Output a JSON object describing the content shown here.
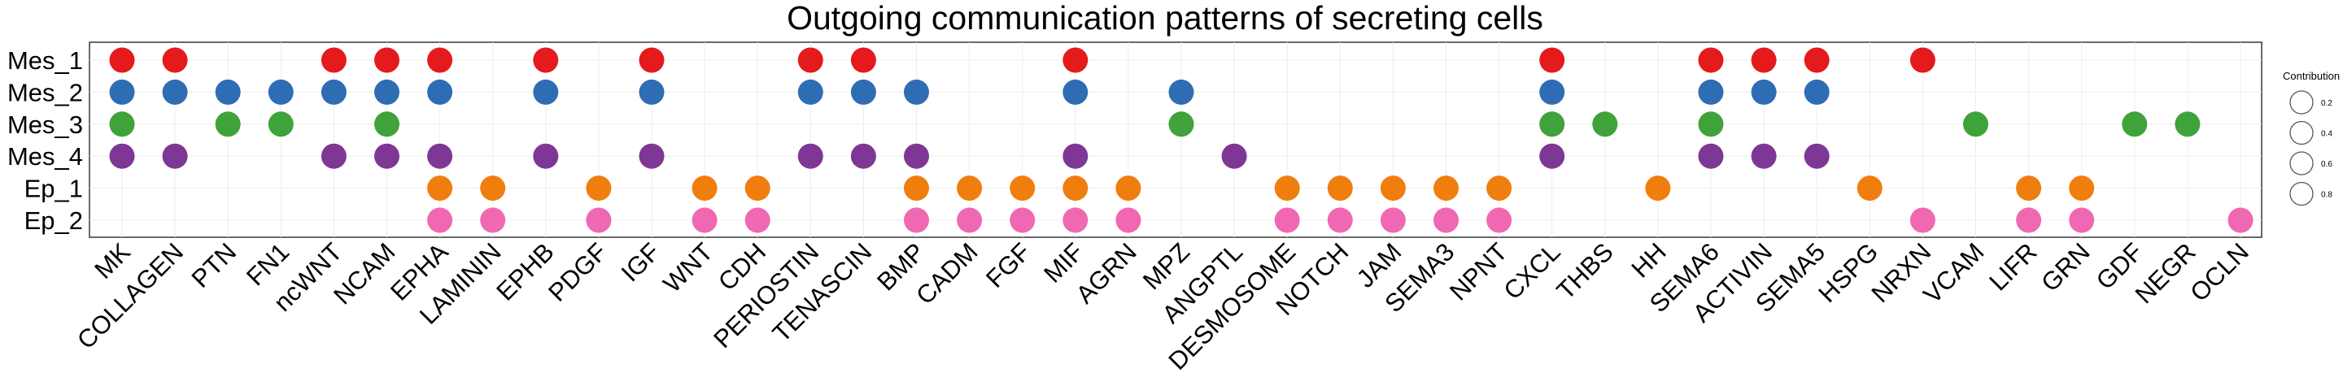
{
  "chart_data": {
    "type": "dot",
    "title": "Outgoing communication patterns of secreting cells",
    "xlabel": "",
    "ylabel": "",
    "grid": true,
    "legend_placement": "right",
    "pathways": [
      "MK",
      "COLLAGEN",
      "PTN",
      "FN1",
      "ncWNT",
      "NCAM",
      "EPHA",
      "LAMININ",
      "EPHB",
      "PDGF",
      "IGF",
      "WNT",
      "CDH",
      "PERIOSTIN",
      "TENASCIN",
      "BMP",
      "CADM",
      "FGF",
      "MIF",
      "AGRN",
      "MPZ",
      "ANGPTL",
      "DESMOSOME",
      "NOTCH",
      "JAM",
      "SEMA3",
      "NPNT",
      "CXCL",
      "THBS",
      "HH",
      "SEMA6",
      "ACTIVIN",
      "SEMA5",
      "HSPG",
      "NRXN",
      "VCAM",
      "LIFR",
      "GRN",
      "GDF",
      "NEGR",
      "OCLN"
    ],
    "cell_groups": [
      {
        "name": "Mes_1",
        "color": "#E41A1C",
        "pathways": [
          "MK",
          "COLLAGEN",
          "ncWNT",
          "NCAM",
          "EPHA",
          "EPHB",
          "IGF",
          "PERIOSTIN",
          "TENASCIN",
          "MIF",
          "CXCL",
          "SEMA6",
          "ACTIVIN",
          "SEMA5",
          "NRXN"
        ]
      },
      {
        "name": "Mes_2",
        "color": "#2E6DB4",
        "pathways": [
          "MK",
          "COLLAGEN",
          "PTN",
          "FN1",
          "ncWNT",
          "NCAM",
          "EPHA",
          "EPHB",
          "IGF",
          "PERIOSTIN",
          "TENASCIN",
          "BMP",
          "MIF",
          "MPZ",
          "CXCL",
          "SEMA6",
          "ACTIVIN",
          "SEMA5"
        ]
      },
      {
        "name": "Mes_3",
        "color": "#3FA23A",
        "pathways": [
          "MK",
          "PTN",
          "FN1",
          "NCAM",
          "MPZ",
          "CXCL",
          "THBS",
          "SEMA6",
          "VCAM",
          "GDF",
          "NEGR"
        ]
      },
      {
        "name": "Mes_4",
        "color": "#7E3794",
        "pathways": [
          "MK",
          "COLLAGEN",
          "ncWNT",
          "NCAM",
          "EPHA",
          "EPHB",
          "IGF",
          "PERIOSTIN",
          "TENASCIN",
          "BMP",
          "MIF",
          "ANGPTL",
          "CXCL",
          "SEMA6",
          "ACTIVIN",
          "SEMA5"
        ]
      },
      {
        "name": "Ep_1",
        "color": "#F07E0E",
        "pathways": [
          "EPHA",
          "LAMININ",
          "PDGF",
          "WNT",
          "CDH",
          "BMP",
          "CADM",
          "FGF",
          "MIF",
          "AGRN",
          "DESMOSOME",
          "NOTCH",
          "JAM",
          "SEMA3",
          "NPNT",
          "HH",
          "HSPG",
          "LIFR",
          "GRN"
        ]
      },
      {
        "name": "Ep_2",
        "color": "#F068B1",
        "pathways": [
          "EPHA",
          "LAMININ",
          "PDGF",
          "WNT",
          "CDH",
          "BMP",
          "CADM",
          "FGF",
          "MIF",
          "AGRN",
          "DESMOSOME",
          "NOTCH",
          "JAM",
          "SEMA3",
          "NPNT",
          "NRXN",
          "LIFR",
          "GRN",
          "OCLN"
        ]
      }
    ],
    "legend": {
      "title": "Contribution",
      "sizes": [
        "0.2",
        "0.4",
        "0.6",
        "0.8"
      ]
    }
  }
}
